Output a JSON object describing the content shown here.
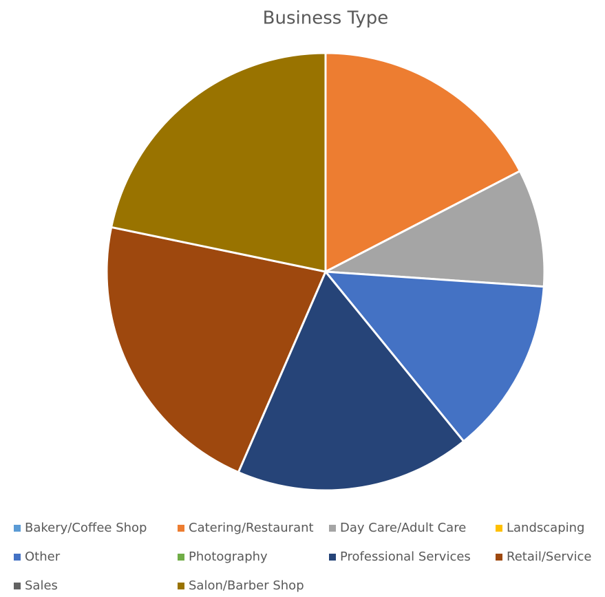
{
  "chart_data": {
    "type": "pie",
    "title": "Business Type",
    "categories": [
      "Bakery/Coffee Shop",
      "Catering/Restaurant",
      "Day Care/Adult Care",
      "Landscaping",
      "Other",
      "Photography",
      "Professional Services",
      "Retail/Service",
      "Sales",
      "Salon/Barber Shop"
    ],
    "values": [
      0,
      4,
      2,
      0,
      3,
      0,
      4,
      5,
      0,
      5
    ],
    "colors": [
      "#5b9bd5",
      "#ed7d31",
      "#a5a5a5",
      "#ffc000",
      "#4472c4",
      "#70ad47",
      "#264478",
      "#9e480e",
      "#636363",
      "#997300"
    ],
    "legend": "bottom"
  }
}
